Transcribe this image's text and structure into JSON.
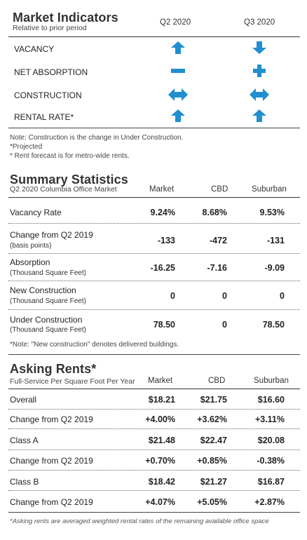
{
  "market_indicators": {
    "title": "Market Indicators",
    "subtitle": "Relative to prior period",
    "col1": "Q2 2020",
    "col2": "Q3 2020",
    "rows": [
      {
        "label": "VACANCY",
        "q2": "up-arrow-icon",
        "q3": "down-arrow-icon"
      },
      {
        "label": "NET ABSORPTION",
        "q2": "minus-icon",
        "q3": "plus-icon"
      },
      {
        "label": "CONSTRUCTION",
        "q2": "left-right-arrow-icon",
        "q3": "left-right-arrow-icon"
      },
      {
        "label": "RENTAL RATE*",
        "q2": "up-arrow-icon",
        "q3": "up-arrow-icon"
      }
    ],
    "icon_color": "#1f8fd0",
    "notes": [
      "Note: Construction is the change in Under Construction.",
      "*Projected",
      "* Rent forecast is for metro-wide rents."
    ]
  },
  "summary": {
    "title": "Summary Statistics",
    "subtitle": "Q2 2020 Columbia Office Market",
    "cols": [
      "Market",
      "CBD",
      "Suburban"
    ],
    "rows": [
      {
        "label": "Vacancy Rate",
        "sub": "",
        "v": [
          "9.24%",
          "8.68%",
          "9.53%"
        ]
      },
      {
        "label": "Change from Q2 2019",
        "sub": "(basis points)",
        "v": [
          "-133",
          "-472",
          "-131"
        ]
      },
      {
        "label": "Absorption",
        "sub": "(Thousand Square Feet)",
        "v": [
          "-16.25",
          "-7.16",
          "-9.09"
        ]
      },
      {
        "label": "New Construction",
        "sub": "(Thousand Square Feet)",
        "v": [
          "0",
          "0",
          "0"
        ]
      },
      {
        "label": "Under Construction",
        "sub": "(Thousand Square Feet)",
        "v": [
          "78.50",
          "0",
          "78.50"
        ]
      }
    ],
    "note": "*Note: \"New construction\" denotes delivered buildings."
  },
  "rents": {
    "title": "Asking Rents*",
    "subtitle": "Full-Service Per Square Foot Per Year",
    "cols": [
      "Market",
      "CBD",
      "Suburban"
    ],
    "rows": [
      {
        "label": "Overall",
        "v": [
          "$18.21",
          "$21.75",
          "$16.60"
        ]
      },
      {
        "label": "Change from Q2 2019",
        "v": [
          "+4.00%",
          "+3.62%",
          "+3.11%"
        ]
      },
      {
        "label": "Class A",
        "v": [
          "$21.48",
          "$22.47",
          "$20.08"
        ]
      },
      {
        "label": "Change from Q2 2019",
        "v": [
          "+0.70%",
          "+0.85%",
          "-0.38%"
        ]
      },
      {
        "label": "Class B",
        "v": [
          "$18.42",
          "$21.27",
          "$16.87"
        ]
      },
      {
        "label": "Change from Q2 2019",
        "v": [
          "+4.07%",
          "+5.05%",
          "+2.87%"
        ]
      }
    ],
    "note": "*Asking rents are averaged weighted rental rates of the remaining available office space"
  }
}
